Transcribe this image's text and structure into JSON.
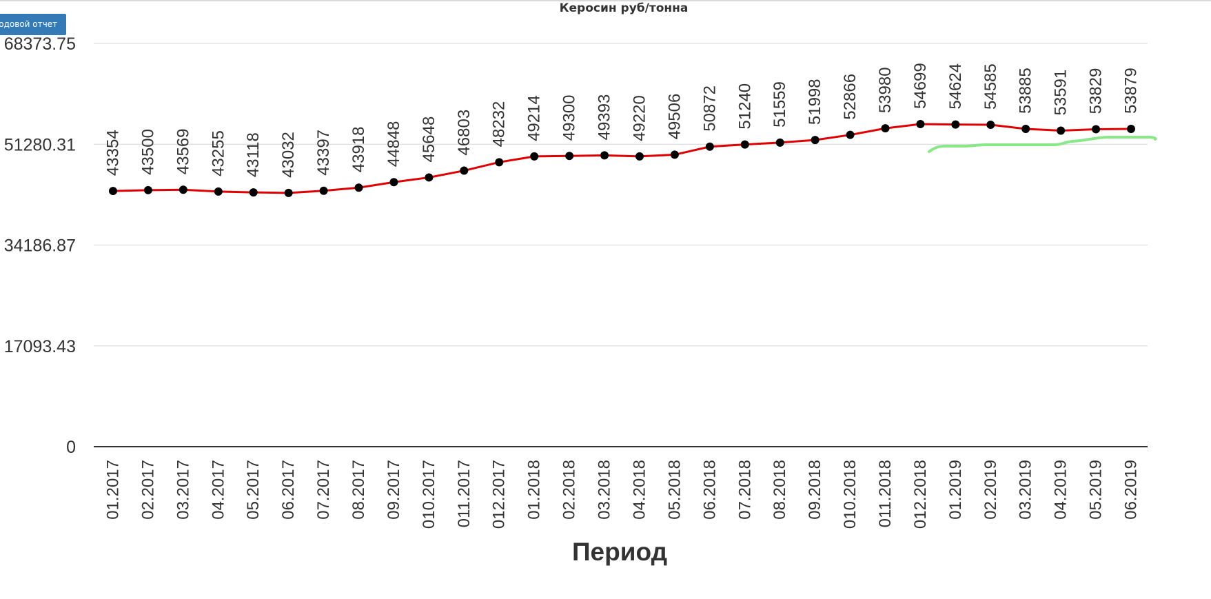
{
  "report_button": {
    "label": "Годовой отчет"
  },
  "chart_data": {
    "type": "line",
    "title": "Керосин руб/тонна",
    "xlabel": "Период",
    "ylabel": "",
    "categories": [
      "01.2017",
      "02.2017",
      "03.2017",
      "04.2017",
      "05.2017",
      "06.2017",
      "07.2017",
      "08.2017",
      "09.2017",
      "010.2017",
      "011.2017",
      "012.2017",
      "01.2018",
      "02.2018",
      "03.2018",
      "04.2018",
      "05.2018",
      "06.2018",
      "07.2018",
      "08.2018",
      "09.2018",
      "010.2018",
      "011.2018",
      "012.2018",
      "01.2019",
      "02.2019",
      "03.2019",
      "04.2019",
      "05.2019",
      "06.2019"
    ],
    "series": [
      {
        "values": [
          43354,
          43500,
          43569,
          43255,
          43118,
          43032,
          43397,
          43918,
          44848,
          45648,
          46803,
          48232,
          49214,
          49300,
          49393,
          49220,
          49506,
          50872,
          51240,
          51559,
          51998,
          52866,
          53980,
          54699,
          54624,
          54585,
          53885,
          53591,
          53829,
          53879
        ]
      }
    ],
    "yticks": [
      "0",
      "17093.43",
      "34186.87",
      "51280.31",
      "68373.75"
    ],
    "ylim": [
      0,
      68373.75
    ],
    "grid": true,
    "line_color": "#e00000",
    "marker_color": "#000000",
    "annotation_color": "#88e888"
  }
}
